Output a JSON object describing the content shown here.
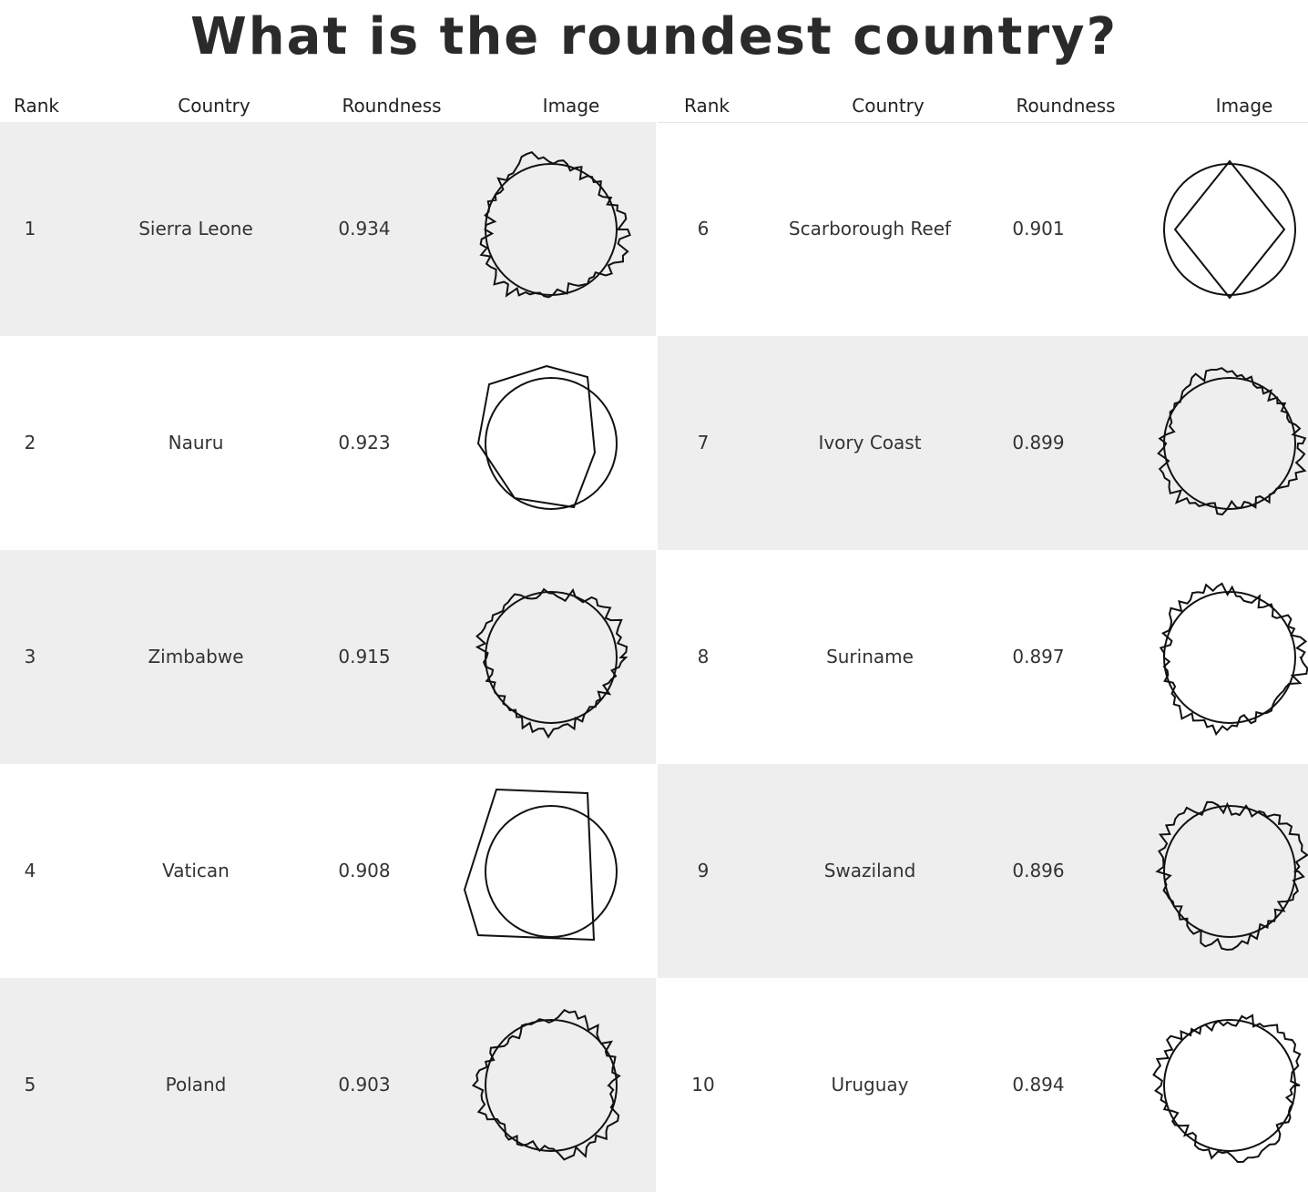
{
  "title": "What is the roundest country?",
  "headers": {
    "rank": "Rank",
    "country": "Country",
    "roundness": "Roundness",
    "image": "Image"
  },
  "rows": [
    {
      "rank": "1",
      "country": "Sierra Leone",
      "roundness": "0.934",
      "shape": "jagged-outline"
    },
    {
      "rank": "2",
      "country": "Nauru",
      "roundness": "0.923",
      "shape": "polygon-outline"
    },
    {
      "rank": "3",
      "country": "Zimbabwe",
      "roundness": "0.915",
      "shape": "jagged-outline"
    },
    {
      "rank": "4",
      "country": "Vatican",
      "roundness": "0.908",
      "shape": "quadrilateral-outline"
    },
    {
      "rank": "5",
      "country": "Poland",
      "roundness": "0.903",
      "shape": "jagged-outline"
    },
    {
      "rank": "6",
      "country": "Scarborough Reef",
      "roundness": "0.901",
      "shape": "diamond-outline"
    },
    {
      "rank": "7",
      "country": "Ivory Coast",
      "roundness": "0.899",
      "shape": "jagged-outline"
    },
    {
      "rank": "8",
      "country": "Suriname",
      "roundness": "0.897",
      "shape": "jagged-outline"
    },
    {
      "rank": "9",
      "country": "Swaziland",
      "roundness": "0.896",
      "shape": "jagged-outline"
    },
    {
      "rank": "10",
      "country": "Uruguay",
      "roundness": "0.894",
      "shape": "jagged-outline"
    }
  ]
}
